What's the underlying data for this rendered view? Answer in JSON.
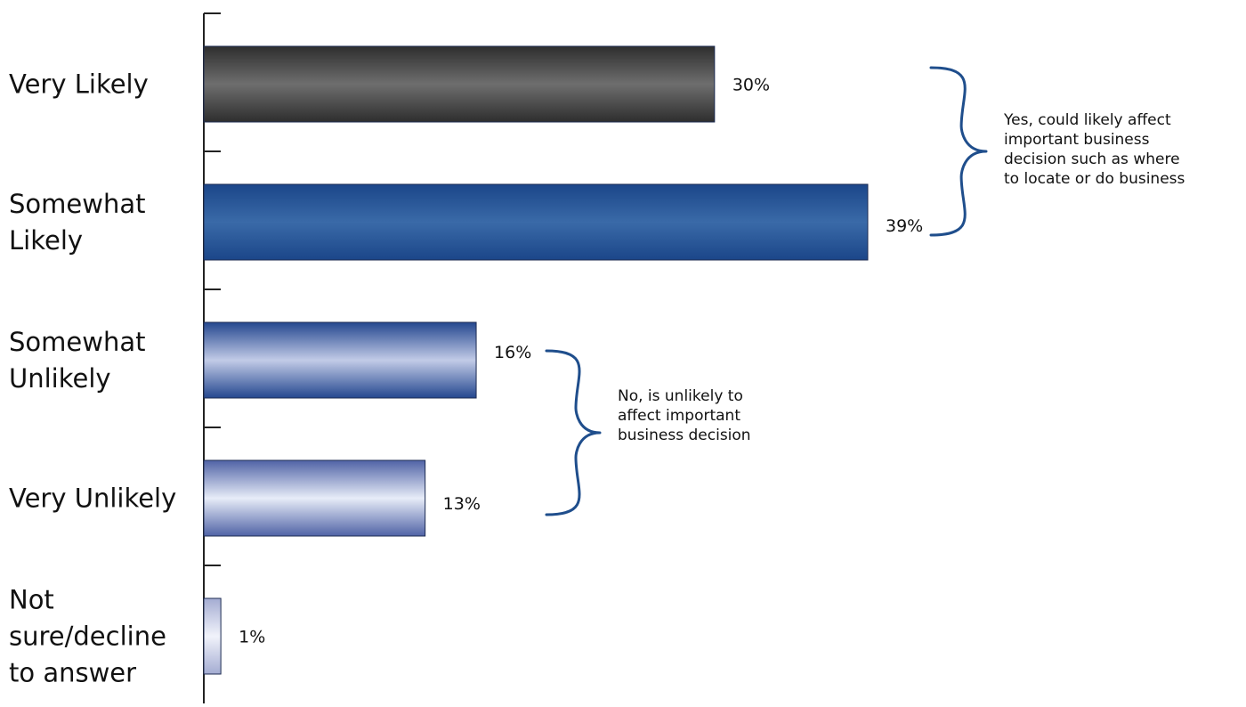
{
  "chart_data": {
    "type": "bar",
    "orientation": "horizontal",
    "categories": [
      [
        "Very Likely"
      ],
      [
        "Somewhat",
        "Likely"
      ],
      [
        "Somewhat",
        "Unlikely"
      ],
      [
        "Very Unlikely"
      ],
      [
        "Not",
        "sure/decline",
        "to answer"
      ]
    ],
    "values": [
      30,
      39,
      16,
      13,
      1
    ],
    "value_labels": [
      "30%",
      "39%",
      "16%",
      "13%",
      "1%"
    ],
    "unit": "%",
    "xlim": [
      0,
      39
    ],
    "grid": false,
    "colors": {
      "very_likely": {
        "light": "#6e6e6e",
        "dark": "#2e2e2e"
      },
      "somewhat_likely": {
        "light": "#3a6aa8",
        "dark": "#1b4689"
      },
      "somewhat_unlikely": {
        "light": "#c2cbe7",
        "dark": "#24478f"
      },
      "very_unlikely": {
        "light": "#e7ecf8",
        "dark": "#5063a6"
      },
      "not_sure": {
        "light": "#f1f3fb",
        "dark": "#a4acd2"
      },
      "bracket": "#1f4e8c",
      "axis": "#222222"
    },
    "annotations": [
      {
        "category_range": [
          0,
          1
        ],
        "text": [
          "Yes, could likely affect",
          "important business",
          "decision such as where",
          "to locate or do business"
        ]
      },
      {
        "category_range": [
          2,
          3
        ],
        "text": [
          "No, is unlikely to",
          "affect important",
          "business decision"
        ]
      }
    ]
  }
}
